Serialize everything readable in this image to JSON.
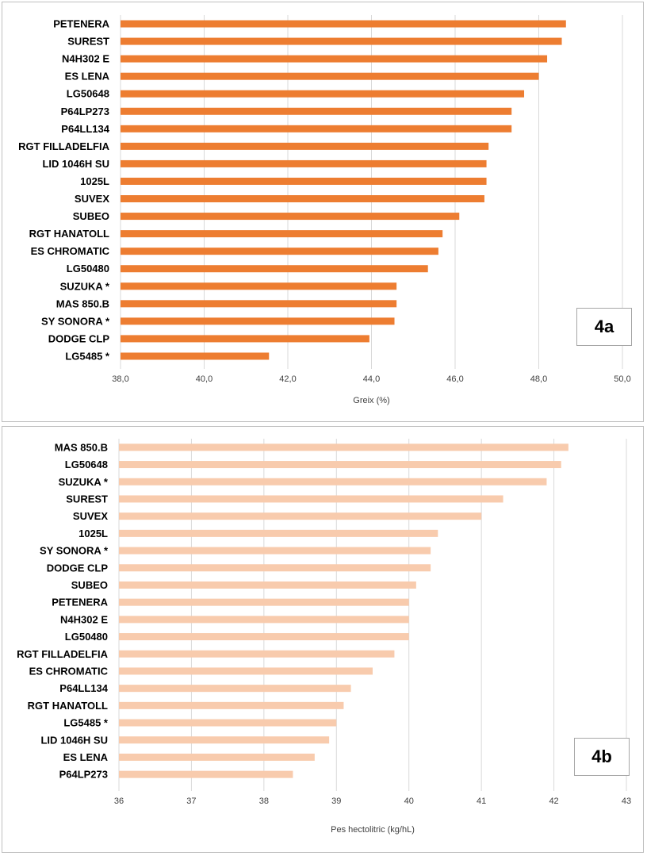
{
  "chart_data": [
    {
      "id": "4a",
      "type": "bar",
      "orientation": "horizontal",
      "badge": "4a",
      "xlabel": "Greix (%)",
      "xlim": [
        38,
        50
      ],
      "xticks": [
        38,
        40,
        42,
        44,
        46,
        48,
        50
      ],
      "xtick_labels": [
        "38,0",
        "40,0",
        "42,0",
        "44,0",
        "46,0",
        "48,0",
        "50,0"
      ],
      "grid": "vertical",
      "bar_color": "#ed7d31",
      "categories": [
        "PETENERA",
        "SUREST",
        "N4H302 E",
        "ES LENA",
        "LG50648",
        "P64LP273",
        "P64LL134",
        "RGT FILLADELFIA",
        "LID 1046H SU",
        "1025L",
        "SUVEX",
        "SUBEO",
        "RGT HANATOLL",
        "ES CHROMATIC",
        "LG50480",
        "SUZUKA *",
        "MAS 850.B",
        "SY SONORA *",
        "DODGE CLP",
        "LG5485 *"
      ],
      "values": [
        48.65,
        48.55,
        48.2,
        48.0,
        47.65,
        47.35,
        47.35,
        46.8,
        46.75,
        46.75,
        46.7,
        46.1,
        45.7,
        45.6,
        45.35,
        44.6,
        44.6,
        44.55,
        43.95,
        41.55
      ]
    },
    {
      "id": "4b",
      "type": "bar",
      "orientation": "horizontal",
      "badge": "4b",
      "xlabel": "Pes hectolitric (kg/hL)",
      "xlim": [
        36,
        43
      ],
      "xticks": [
        36,
        37,
        38,
        39,
        40,
        41,
        42,
        43
      ],
      "xtick_labels": [
        "36",
        "37",
        "38",
        "39",
        "40",
        "41",
        "42",
        "43"
      ],
      "grid": "vertical",
      "bar_color": "#f8cbad",
      "categories": [
        "MAS 850.B",
        "LG50648",
        "SUZUKA *",
        "SUREST",
        "SUVEX",
        "1025L",
        "SY SONORA *",
        "DODGE CLP",
        "SUBEO",
        "PETENERA",
        "N4H302 E",
        "LG50480",
        "RGT FILLADELFIA",
        "ES CHROMATIC",
        "P64LL134",
        "RGT HANATOLL",
        "LG5485 *",
        "LID 1046H SU",
        "ES LENA",
        "P64LP273"
      ],
      "values": [
        42.2,
        42.1,
        41.9,
        41.3,
        41.0,
        40.4,
        40.3,
        40.3,
        40.1,
        40.0,
        40.0,
        40.0,
        39.8,
        39.5,
        39.2,
        39.1,
        39.0,
        38.9,
        38.7,
        38.4
      ]
    }
  ]
}
